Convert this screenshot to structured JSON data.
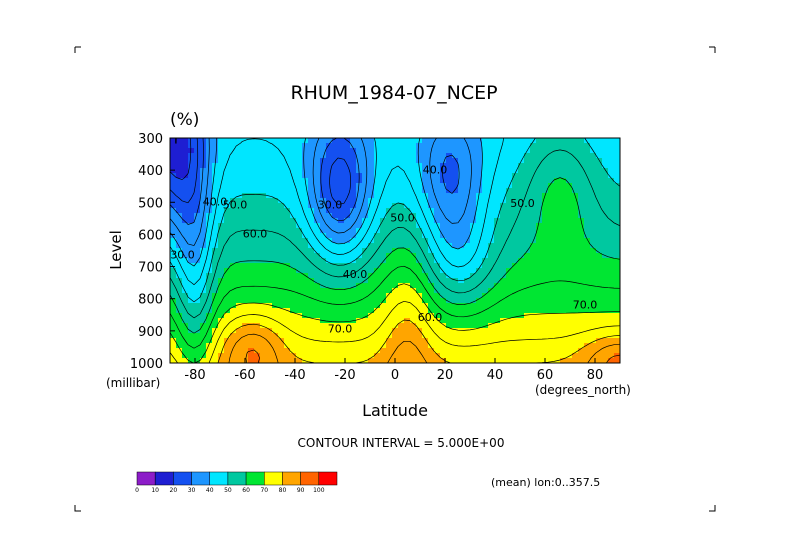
{
  "chart_data": {
    "type": "heatmap",
    "title": "RHUM_1984-07_NCEP",
    "units": "(%)",
    "xlabel": "Latitude",
    "ylabel": "Level",
    "x_units": "(degrees_north)",
    "y_units": "(millibar)",
    "xlim": [
      -90,
      90
    ],
    "ylim": [
      1000,
      300
    ],
    "x_ticks": [
      -80,
      -60,
      -40,
      -20,
      0,
      20,
      40,
      60,
      80
    ],
    "x_tick_labels": [
      "-80",
      "-60",
      "-40",
      "-20",
      "0",
      "20",
      "40",
      "60",
      "80"
    ],
    "y_ticks": [
      300,
      400,
      500,
      600,
      700,
      800,
      900,
      1000
    ],
    "y_tick_labels": [
      "300",
      "400",
      "500",
      "600",
      "700",
      "800",
      "900",
      "1000"
    ],
    "contour_interval_text": "CONTOUR INTERVAL = 5.000E+00",
    "footnote": "(mean) lon:0..357.5",
    "colorbar": {
      "levels": [
        0,
        10,
        20,
        30,
        40,
        50,
        60,
        70,
        80,
        90,
        100
      ],
      "level_labels": [
        "0",
        "10",
        "20",
        "30",
        "40",
        "50",
        "60",
        "70",
        "80",
        "90",
        "100"
      ],
      "colors": [
        "#8c1cc8",
        "#1e1ed2",
        "#1450f0",
        "#1e96ff",
        "#00e6ff",
        "#00c8a0",
        "#00e632",
        "#ffff00",
        "#ffa500",
        "#ff6400",
        "#ff0000"
      ]
    },
    "contour_labels": [
      {
        "text": "30.0",
        "lat": -85,
        "lev": 675
      },
      {
        "text": "40.0",
        "lat": -72,
        "lev": 510
      },
      {
        "text": "50.0",
        "lat": -64,
        "lev": 520
      },
      {
        "text": "60.0",
        "lat": -56,
        "lev": 610
      },
      {
        "text": "70.0",
        "lat": -22,
        "lev": 905
      },
      {
        "text": "30.0",
        "lat": -26,
        "lev": 520
      },
      {
        "text": "40.0",
        "lat": -16,
        "lev": 735
      },
      {
        "text": "50.0",
        "lat": 3,
        "lev": 560
      },
      {
        "text": "60.0",
        "lat": 14,
        "lev": 870
      },
      {
        "text": "40.0",
        "lat": 16,
        "lev": 410
      },
      {
        "text": "50.0",
        "lat": 51,
        "lev": 515
      },
      {
        "text": "70.0",
        "lat": 76,
        "lev": 830
      }
    ],
    "grid": false
  }
}
